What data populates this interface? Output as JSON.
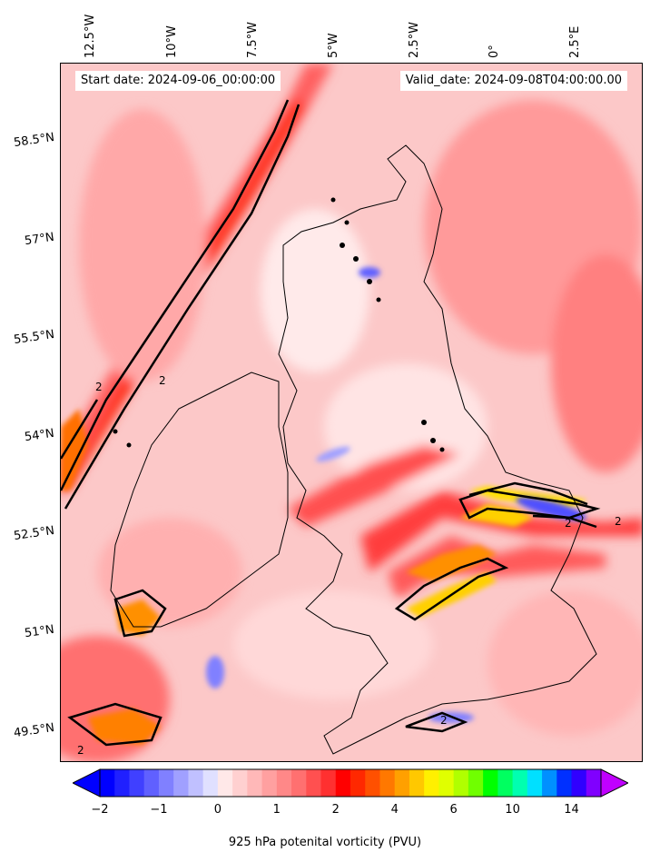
{
  "map": {
    "longitude_labels": [
      "12.5°W",
      "10°W",
      "7.5°W",
      "5°W",
      "2.5°W",
      "0°",
      "2.5°E"
    ],
    "latitude_labels": [
      "58.5°N",
      "57°N",
      "55.5°N",
      "54°N",
      "52.5°N",
      "51°N",
      "49.5°N"
    ],
    "start_date": "Start date: 2024-09-06_00:00:00",
    "valid_date": "Valid_date: 2024-09-08T04:00:00.00",
    "contour_label": "2"
  },
  "colorbar": {
    "tick_labels": [
      "−2",
      "−1",
      "0",
      "1",
      "2",
      "4",
      "6",
      "10",
      "14"
    ],
    "title": "925 hPa potenital vorticity (PVU)",
    "colors": [
      "#0000ff",
      "#2020ff",
      "#4040ff",
      "#6060ff",
      "#8080ff",
      "#a0a0ff",
      "#c0c0ff",
      "#e0e0ff",
      "#ffe8e8",
      "#ffd0d0",
      "#ffb8b8",
      "#ffa0a0",
      "#ff8888",
      "#ff7070",
      "#ff5050",
      "#ff3030",
      "#ff0000",
      "#ff2800",
      "#ff5000",
      "#ff7800",
      "#ffa000",
      "#ffc800",
      "#fff000",
      "#e0ff00",
      "#b0ff00",
      "#70ff00",
      "#00ff00",
      "#00ff60",
      "#00ffb0",
      "#00e0ff",
      "#0090ff",
      "#0030ff",
      "#3000ff",
      "#8000ff"
    ],
    "extend_low_color": "#0000ff",
    "extend_high_color": "#c000ff"
  }
}
